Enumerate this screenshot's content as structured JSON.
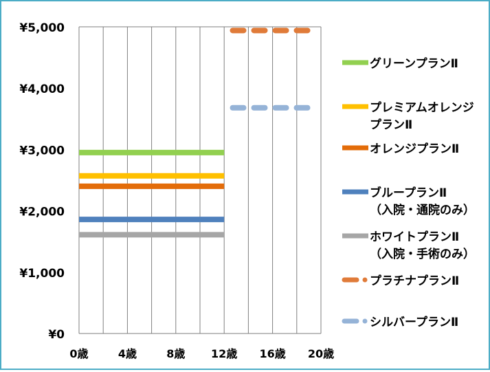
{
  "chart_data": {
    "type": "line",
    "title": "",
    "xlabel": "",
    "ylabel": "",
    "xlim": [
      0,
      20
    ],
    "ylim": [
      0,
      5000
    ],
    "x_ticks": [
      0,
      4,
      8,
      12,
      16,
      20
    ],
    "x_tick_labels": [
      "0歳",
      "4歳",
      "8歳",
      "12歳",
      "16歳",
      "20歳"
    ],
    "y_ticks": [
      0,
      1000,
      2000,
      3000,
      4000,
      5000
    ],
    "y_tick_labels": [
      "¥0",
      "¥1,000",
      "¥2,000",
      "¥3,000",
      "¥4,000",
      "¥5,000"
    ],
    "grid": "vertical",
    "legend_position": "right",
    "series": [
      {
        "name": "グリーンプランⅡ",
        "label_lines": [
          "グリーンプランⅡ"
        ],
        "color": "#92d050",
        "dashed": false,
        "x": [
          0,
          12
        ],
        "values": [
          2950,
          2950
        ]
      },
      {
        "name": "プレミアムオレンジプランⅡ",
        "label_lines": [
          "プレミアムオレンジ",
          "プランⅡ"
        ],
        "color": "#ffc000",
        "dashed": false,
        "x": [
          0,
          12
        ],
        "values": [
          2570,
          2570
        ]
      },
      {
        "name": "オレンジプランⅡ",
        "label_lines": [
          "オレンジプランⅡ"
        ],
        "color": "#e36c09",
        "dashed": false,
        "x": [
          0,
          12
        ],
        "values": [
          2400,
          2400
        ]
      },
      {
        "name": "ブループランⅡ（入院・通院のみ）",
        "label_lines": [
          "ブループランⅡ",
          "（入院・通院のみ）"
        ],
        "color": "#4f81bd",
        "dashed": false,
        "x": [
          0,
          12
        ],
        "values": [
          1860,
          1860
        ]
      },
      {
        "name": "ホワイトプランⅡ（入院・手術のみ）",
        "label_lines": [
          "ホワイトプランⅡ",
          "（入院・手術のみ）"
        ],
        "color": "#a6a6a6",
        "dashed": false,
        "x": [
          0,
          12
        ],
        "values": [
          1610,
          1610
        ]
      },
      {
        "name": "プラチナプランⅡ",
        "label_lines": [
          "プラチナプランⅡ"
        ],
        "color": "#e07b39",
        "dashed": true,
        "x": [
          12.7,
          19.6
        ],
        "values": [
          4940,
          4940
        ]
      },
      {
        "name": "シルバープランⅡ",
        "label_lines": [
          "シルバープランⅡ"
        ],
        "color": "#95b3d7",
        "dashed": true,
        "x": [
          12.7,
          19.6
        ],
        "values": [
          3680,
          3680
        ]
      }
    ]
  }
}
